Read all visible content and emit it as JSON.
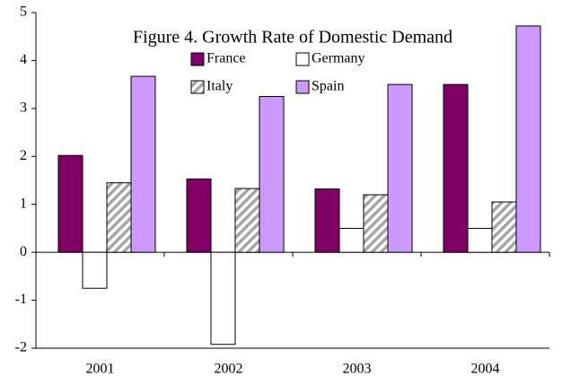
{
  "chart_data": {
    "type": "bar",
    "title": "Figure 4. Growth Rate of Domestic Demand",
    "categories": [
      "2001",
      "2002",
      "2003",
      "2004"
    ],
    "series": [
      {
        "name": "France",
        "color": "#800066",
        "values": [
          2.02,
          1.53,
          1.32,
          3.5
        ]
      },
      {
        "name": "Germany",
        "color": "#ffffff",
        "values": [
          -0.75,
          -1.92,
          0.5,
          0.5
        ]
      },
      {
        "name": "Italy",
        "color": "#a6a6a6",
        "hatch": true,
        "values": [
          1.45,
          1.33,
          1.2,
          1.05
        ]
      },
      {
        "name": "Spain",
        "color": "#cc99ff",
        "values": [
          3.67,
          3.25,
          3.5,
          4.72
        ]
      }
    ],
    "ylim": [
      -2,
      5
    ],
    "yticks": [
      -2,
      -1,
      0,
      1,
      2,
      3,
      4,
      5
    ],
    "grid": false,
    "legend": "top"
  }
}
